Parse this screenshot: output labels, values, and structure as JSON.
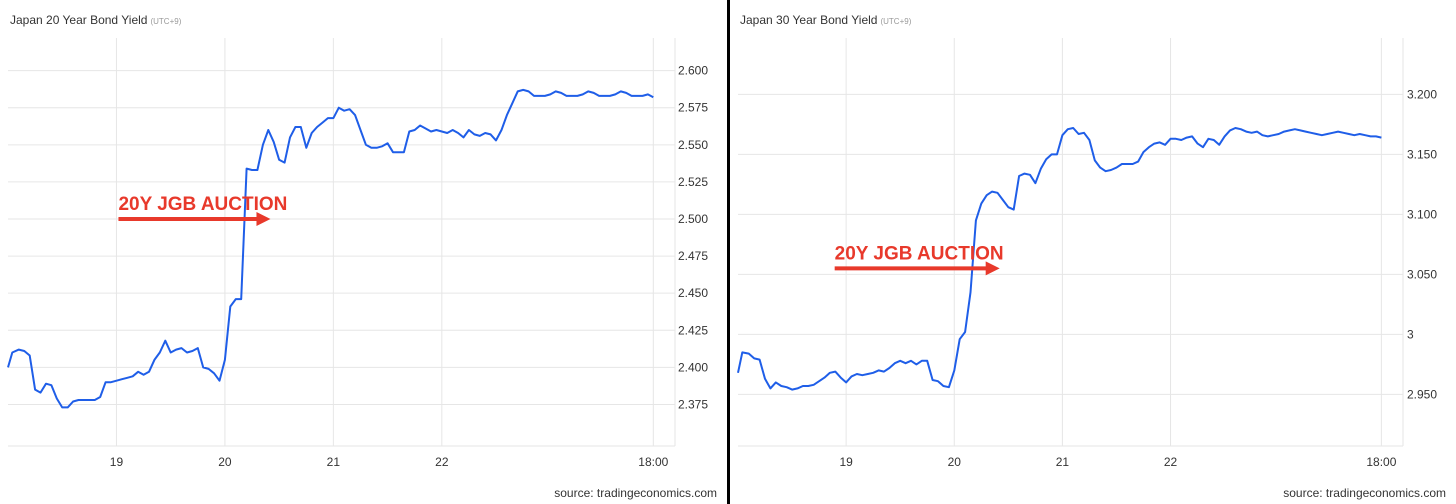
{
  "colors": {
    "line": "#1f5ee8",
    "grid": "#e6e6e6",
    "annotation": "#e8392b",
    "text": "#333333",
    "divider": "#000000"
  },
  "left": {
    "title": "Japan 20 Year Bond Yield",
    "timezone": "(UTC+9)",
    "source": "source: tradingeconomics.com"
  },
  "right": {
    "title": "Japan 30 Year Bond Yield",
    "timezone": "(UTC+9)",
    "source": "source: tradingeconomics.com"
  },
  "chart_data": [
    {
      "type": "line",
      "title": "Japan 20 Year Bond Yield",
      "xlabel": "",
      "ylabel": "",
      "x_ticks": [
        19,
        20,
        21,
        22,
        23.95
      ],
      "x_tick_labels": [
        "19",
        "20",
        "21",
        "22",
        "18:00"
      ],
      "xlim": [
        18.0,
        24.15
      ],
      "y_ticks": [
        2.375,
        2.4,
        2.425,
        2.45,
        2.475,
        2.5,
        2.525,
        2.55,
        2.575,
        2.6
      ],
      "y_tick_labels": [
        "2.375",
        "2.400",
        "2.425",
        "2.450",
        "2.475",
        "2.500",
        "2.525",
        "2.550",
        "2.575",
        "2.600"
      ],
      "ylim": [
        2.347,
        2.622
      ],
      "grid": true,
      "annotation": {
        "text": "20Y JGB AUCTION",
        "x": 20.42,
        "y": 2.5
      },
      "series": [
        {
          "x": [
            18.0,
            18.04,
            18.1,
            18.15,
            18.2,
            18.25,
            18.3,
            18.35,
            18.4,
            18.45,
            18.5,
            18.55,
            18.6,
            18.65,
            18.7,
            18.75,
            18.8,
            18.85,
            18.9,
            18.95,
            19.0,
            19.05,
            19.1,
            19.15,
            19.2,
            19.25,
            19.3,
            19.35,
            19.4,
            19.45,
            19.5,
            19.55,
            19.6,
            19.65,
            19.7,
            19.75,
            19.8,
            19.85,
            19.9,
            19.95,
            20.0,
            20.05,
            20.1,
            20.15,
            20.2,
            20.25,
            20.3,
            20.35,
            20.4,
            20.45,
            20.5,
            20.55,
            20.6,
            20.65,
            20.7,
            20.75,
            20.8,
            20.85,
            20.9,
            20.95,
            21.0,
            21.05,
            21.1,
            21.15,
            21.2,
            21.25,
            21.3,
            21.35,
            21.4,
            21.45,
            21.5,
            21.55,
            21.6,
            21.65,
            21.7,
            21.75,
            21.8,
            21.85,
            21.9,
            21.95,
            22.0,
            22.05,
            22.1,
            22.15,
            22.2,
            22.25,
            22.3,
            22.35,
            22.4,
            22.45,
            22.5,
            22.55,
            22.6,
            22.65,
            22.7,
            22.75,
            22.8,
            22.85,
            22.9,
            22.95,
            23.0,
            23.05,
            23.1,
            23.15,
            23.2,
            23.25,
            23.3,
            23.35,
            23.4,
            23.45,
            23.5,
            23.55,
            23.6,
            23.65,
            23.7,
            23.75,
            23.8,
            23.85,
            23.9,
            23.95
          ],
          "y": [
            2.4,
            2.41,
            2.412,
            2.411,
            2.408,
            2.385,
            2.383,
            2.389,
            2.388,
            2.379,
            2.373,
            2.373,
            2.377,
            2.378,
            2.378,
            2.378,
            2.378,
            2.38,
            2.39,
            2.39,
            2.391,
            2.392,
            2.393,
            2.394,
            2.397,
            2.395,
            2.397,
            2.405,
            2.41,
            2.418,
            2.41,
            2.412,
            2.413,
            2.41,
            2.411,
            2.413,
            2.4,
            2.399,
            2.396,
            2.391,
            2.405,
            2.441,
            2.446,
            2.446,
            2.534,
            2.533,
            2.533,
            2.55,
            2.56,
            2.552,
            2.54,
            2.538,
            2.555,
            2.562,
            2.562,
            2.548,
            2.558,
            2.562,
            2.565,
            2.568,
            2.568,
            2.575,
            2.573,
            2.574,
            2.57,
            2.56,
            2.55,
            2.548,
            2.548,
            2.549,
            2.551,
            2.545,
            2.545,
            2.545,
            2.559,
            2.56,
            2.563,
            2.561,
            2.559,
            2.56,
            2.559,
            2.558,
            2.56,
            2.558,
            2.555,
            2.56,
            2.557,
            2.556,
            2.558,
            2.557,
            2.553,
            2.56,
            2.57,
            2.578,
            2.586,
            2.587,
            2.586,
            2.583,
            2.583,
            2.583,
            2.584,
            2.586,
            2.585,
            2.583,
            2.583,
            2.583,
            2.584,
            2.586,
            2.585,
            2.583,
            2.583,
            2.583,
            2.584,
            2.586,
            2.585,
            2.583,
            2.583,
            2.583,
            2.584,
            2.582
          ]
        }
      ]
    },
    {
      "type": "line",
      "title": "Japan 30 Year Bond Yield",
      "xlabel": "",
      "ylabel": "",
      "x_ticks": [
        19,
        20,
        21,
        22,
        23.95
      ],
      "x_tick_labels": [
        "19",
        "20",
        "21",
        "22",
        "18:00"
      ],
      "xlim": [
        18.0,
        24.15
      ],
      "y_ticks": [
        2.95,
        3.0,
        3.05,
        3.1,
        3.15,
        3.2
      ],
      "y_tick_labels": [
        "2.950",
        "3",
        "3.050",
        "3.100",
        "3.150",
        "3.200"
      ],
      "ylim": [
        2.907,
        3.247
      ],
      "grid": true,
      "annotation": {
        "text": "20Y JGB AUCTION",
        "x": 20.42,
        "y": 3.055
      },
      "series": [
        {
          "x": [
            18.0,
            18.04,
            18.1,
            18.15,
            18.2,
            18.25,
            18.3,
            18.35,
            18.4,
            18.45,
            18.5,
            18.55,
            18.6,
            18.65,
            18.7,
            18.75,
            18.8,
            18.85,
            18.9,
            18.95,
            19.0,
            19.05,
            19.1,
            19.15,
            19.2,
            19.25,
            19.3,
            19.35,
            19.4,
            19.45,
            19.5,
            19.55,
            19.6,
            19.65,
            19.7,
            19.75,
            19.8,
            19.85,
            19.9,
            19.95,
            20.0,
            20.05,
            20.1,
            20.15,
            20.2,
            20.25,
            20.3,
            20.35,
            20.4,
            20.45,
            20.5,
            20.55,
            20.6,
            20.65,
            20.7,
            20.75,
            20.8,
            20.85,
            20.9,
            20.95,
            21.0,
            21.05,
            21.1,
            21.15,
            21.2,
            21.25,
            21.3,
            21.35,
            21.4,
            21.45,
            21.5,
            21.55,
            21.6,
            21.65,
            21.7,
            21.75,
            21.8,
            21.85,
            21.9,
            21.95,
            22.0,
            22.05,
            22.1,
            22.15,
            22.2,
            22.25,
            22.3,
            22.35,
            22.4,
            22.45,
            22.5,
            22.55,
            22.6,
            22.65,
            22.7,
            22.75,
            22.8,
            22.85,
            22.9,
            22.95,
            23.0,
            23.05,
            23.1,
            23.15,
            23.2,
            23.25,
            23.3,
            23.35,
            23.4,
            23.45,
            23.5,
            23.55,
            23.6,
            23.65,
            23.7,
            23.75,
            23.8,
            23.85,
            23.9,
            23.95
          ],
          "y": [
            2.968,
            2.985,
            2.984,
            2.98,
            2.979,
            2.963,
            2.955,
            2.96,
            2.957,
            2.956,
            2.954,
            2.955,
            2.957,
            2.957,
            2.958,
            2.961,
            2.964,
            2.968,
            2.969,
            2.964,
            2.96,
            2.965,
            2.967,
            2.966,
            2.967,
            2.968,
            2.97,
            2.969,
            2.972,
            2.976,
            2.978,
            2.976,
            2.978,
            2.975,
            2.978,
            2.978,
            2.962,
            2.961,
            2.957,
            2.956,
            2.97,
            2.996,
            3.002,
            3.035,
            3.095,
            3.109,
            3.116,
            3.119,
            3.118,
            3.112,
            3.106,
            3.104,
            3.132,
            3.134,
            3.133,
            3.126,
            3.138,
            3.146,
            3.15,
            3.15,
            3.166,
            3.171,
            3.172,
            3.167,
            3.168,
            3.162,
            3.145,
            3.139,
            3.136,
            3.137,
            3.139,
            3.142,
            3.142,
            3.142,
            3.144,
            3.152,
            3.156,
            3.159,
            3.16,
            3.158,
            3.163,
            3.163,
            3.162,
            3.164,
            3.165,
            3.159,
            3.156,
            3.163,
            3.162,
            3.158,
            3.165,
            3.17,
            3.172,
            3.171,
            3.169,
            3.168,
            3.169,
            3.166,
            3.165,
            3.166,
            3.167,
            3.169,
            3.17,
            3.171,
            3.17,
            3.169,
            3.168,
            3.167,
            3.166,
            3.167,
            3.168,
            3.169,
            3.168,
            3.167,
            3.166,
            3.167,
            3.166,
            3.165,
            3.165,
            3.164
          ]
        }
      ]
    }
  ]
}
